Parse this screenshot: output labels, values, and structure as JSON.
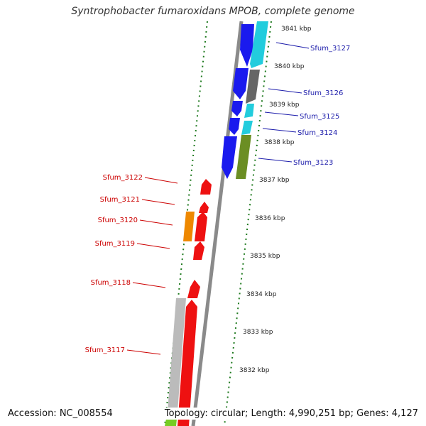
{
  "title": "Syntrophobacter fumaroxidans MPOB, complete genome",
  "footer": {
    "accession": "Accession: NC_008554",
    "topology": "Topology: circular; Length: 4,990,251 bp; Genes: 4,127"
  },
  "colors": {
    "backbone": "#8a8a8a",
    "ticks": "#1f7a1f",
    "blue": "#1a1aee",
    "cyan": "#22ccdd",
    "gray": "#666666",
    "olive": "#6b8e23",
    "red": "#ee1111",
    "orange": "#ee8800",
    "lightgray": "#bbbbbb",
    "lime": "#77cc22",
    "label_blue": "#1a1aaa",
    "label_red": "#cc0000"
  },
  "kbp_labels": [
    "3841 kbp",
    "3840 kbp",
    "3839 kbp",
    "3838 kbp",
    "3837 kbp",
    "3836 kbp",
    "3835 kbp",
    "3834 kbp",
    "3833 kbp",
    "3832 kbp"
  ],
  "genes_right": [
    {
      "name": "Sfum_3127"
    },
    {
      "name": "Sfum_3126"
    },
    {
      "name": "Sfum_3125"
    },
    {
      "name": "Sfum_3124"
    },
    {
      "name": "Sfum_3123"
    }
  ],
  "genes_left": [
    {
      "name": "Sfum_3122"
    },
    {
      "name": "Sfum_3121"
    },
    {
      "name": "Sfum_3120"
    },
    {
      "name": "Sfum_3119"
    },
    {
      "name": "Sfum_3118"
    },
    {
      "name": "Sfum_3117"
    }
  ]
}
